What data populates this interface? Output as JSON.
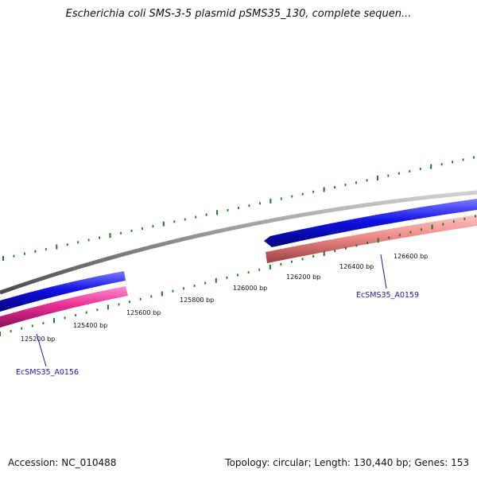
{
  "title": "Escherichia coli SMS-3-5 plasmid pSMS35_130, complete sequen...",
  "footer": {
    "accession": "Accession: NC_010488",
    "summary": "Topology: circular; Length: 130,440 bp; Genes: 153"
  },
  "colors": {
    "backbone": "#8a8a8a",
    "forward_gene": "#1010dd",
    "reverse_gene_pink": "#e83a9a",
    "reverse_gene_salmon": "#ee8888",
    "ticks": "#1a7a1a",
    "gene_label": "#1a1aa8"
  },
  "ticks": [
    {
      "label": "125200 bp"
    },
    {
      "label": "125400 bp"
    },
    {
      "label": "125600 bp"
    },
    {
      "label": "125800 bp"
    },
    {
      "label": "126000 bp"
    },
    {
      "label": "126200 bp"
    },
    {
      "label": "126400 bp"
    },
    {
      "label": "126600 bp"
    }
  ],
  "genes": [
    {
      "name": "EcSMS35_A0156"
    },
    {
      "name": "EcSMS35_A0159"
    }
  ]
}
